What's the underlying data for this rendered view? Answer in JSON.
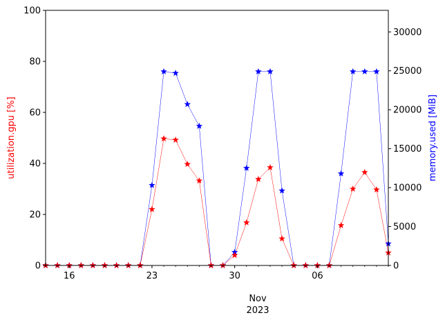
{
  "chart_data": {
    "type": "line",
    "marker": "star",
    "x": [
      "2023-10-14",
      "2023-10-15",
      "2023-10-16",
      "2023-10-17",
      "2023-10-18",
      "2023-10-19",
      "2023-10-20",
      "2023-10-21",
      "2023-10-22",
      "2023-10-23",
      "2023-10-24",
      "2023-10-25",
      "2023-10-26",
      "2023-10-27",
      "2023-10-28",
      "2023-10-29",
      "2023-10-30",
      "2023-10-31",
      "2023-11-01",
      "2023-11-02",
      "2023-11-03",
      "2023-11-04",
      "2023-11-05",
      "2023-11-06",
      "2023-11-07",
      "2023-11-08",
      "2023-11-09",
      "2023-11-10",
      "2023-11-11",
      "2023-11-12"
    ],
    "series": [
      {
        "axis": "left",
        "color": "#ff0000",
        "values": [
          0,
          0,
          0,
          0,
          0,
          0,
          0,
          0,
          0,
          22,
          49.7,
          49.2,
          39.7,
          33.2,
          0,
          0,
          4,
          16.8,
          33.8,
          38.4,
          10.5,
          0,
          0,
          0,
          0,
          15.7,
          30,
          36.5,
          29.7,
          5
        ]
      },
      {
        "axis": "right",
        "color": "#0000ff",
        "values": [
          0,
          0,
          0,
          0,
          0,
          0,
          0,
          0,
          0,
          10300,
          24900,
          24700,
          20700,
          17900,
          0,
          0,
          1700,
          12500,
          24900,
          24900,
          9600,
          0,
          0,
          0,
          0,
          11800,
          24900,
          24900,
          24900,
          2800
        ]
      }
    ],
    "ylabel_left": "utilization.gpu [%]",
    "ylabel_right": "memory.used [MiB]",
    "ylim_left": [
      0,
      100
    ],
    "ylim_right": [
      0,
      32768
    ],
    "xlim": [
      "2023-10-14",
      "2023-11-12"
    ],
    "x_tick_labels": [
      "16",
      "23",
      "30",
      "06"
    ],
    "x_tick_values": [
      "2023-10-16",
      "2023-10-23",
      "2023-10-30",
      "2023-11-06"
    ],
    "y_left_ticks": [
      0,
      20,
      40,
      60,
      80,
      100
    ],
    "y_right_ticks": [
      0,
      5000,
      10000,
      15000,
      20000,
      25000,
      30000
    ],
    "xlabel_month": "Nov",
    "xlabel_year": "2023",
    "grid": false,
    "left_label_color": "#ff0000",
    "right_label_color": "#0000ff"
  }
}
